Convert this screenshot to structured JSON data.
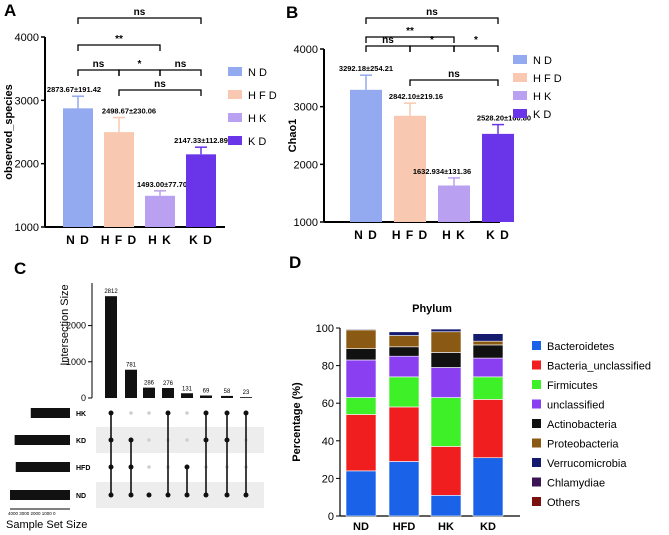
{
  "panels": {
    "A": "A",
    "B": "B",
    "C": "C",
    "D": "D"
  },
  "chart_data": [
    {
      "id": "A",
      "type": "bar",
      "ylabel": "observed_species",
      "categories": [
        "N D",
        "H F D",
        "H K",
        "K D"
      ],
      "values": [
        2873.67,
        2498.67,
        1493.0,
        2147.33
      ],
      "errors": [
        191.42,
        230.06,
        77.7,
        112.89
      ],
      "data_labels": [
        "2873.67±191.42",
        "2498.67±230.06",
        "1493.00±77.70",
        "2147.33±112.89"
      ],
      "colors": [
        "#93a9f0",
        "#f8c9b0",
        "#b9a0f0",
        "#6a35e8"
      ],
      "ylim": [
        1000,
        4000
      ],
      "yticks": [
        "1000",
        "2000",
        "3000",
        "4000"
      ],
      "legend": [
        "N D",
        "H F D",
        "H K",
        "K D"
      ],
      "significance": [
        {
          "from": 0,
          "to": 3,
          "label": "ns"
        },
        {
          "from": 0,
          "to": 2,
          "label": "**"
        },
        {
          "from": 0,
          "to": 1,
          "label": "ns"
        },
        {
          "from": 1,
          "to": 2,
          "label": "*"
        },
        {
          "from": 2,
          "to": 3,
          "label": "ns"
        },
        {
          "from": 1,
          "to": 3,
          "label": "ns"
        }
      ]
    },
    {
      "id": "B",
      "type": "bar",
      "ylabel": "Chao1",
      "categories": [
        "N D",
        "H F D",
        "H K",
        "K D"
      ],
      "values": [
        3292.18,
        2842.1,
        1632.934,
        2528.2
      ],
      "errors": [
        254.21,
        219.16,
        131.36,
        160.8
      ],
      "data_labels": [
        "3292.18±254.21",
        "2842.10±219.16",
        "1632.934±131.36",
        "2528.20±160.80"
      ],
      "colors": [
        "#93a9f0",
        "#f8c9b0",
        "#b9a0f0",
        "#6a35e8"
      ],
      "ylim": [
        1000,
        4000
      ],
      "yticks": [
        "1000",
        "2000",
        "3000",
        "4000"
      ],
      "legend": [
        "N D",
        "H F D",
        "H K",
        "K D"
      ],
      "significance": [
        {
          "from": 0,
          "to": 3,
          "label": "ns"
        },
        {
          "from": 0,
          "to": 2,
          "label": "**"
        },
        {
          "from": 0,
          "to": 1,
          "label": "ns"
        },
        {
          "from": 1,
          "to": 2,
          "label": "*"
        },
        {
          "from": 2,
          "to": 3,
          "label": "*"
        },
        {
          "from": 1,
          "to": 3,
          "label": "ns"
        }
      ]
    },
    {
      "id": "C",
      "type": "upset",
      "ylabel": "Intersection Size",
      "xlabel": "Sample Set Size",
      "yticks": [
        "0",
        "1000",
        "2000"
      ],
      "ylim": [
        0,
        2900
      ],
      "sets": [
        "HK",
        "KD",
        "HFD",
        "ND"
      ],
      "set_sizes": [
        3400,
        4800,
        4700,
        5200
      ],
      "set_axis_label": "4000 3000 2000 1000 0",
      "intersections": [
        {
          "size": 2812,
          "label": "2812",
          "members": [
            "HK",
            "KD",
            "HFD",
            "ND"
          ]
        },
        {
          "size": 781,
          "label": "781",
          "members": [
            "KD",
            "HFD",
            "ND"
          ]
        },
        {
          "size": 286,
          "label": "286",
          "members": [
            "ND"
          ]
        },
        {
          "size": 276,
          "label": "276",
          "members": [
            "HK",
            "ND"
          ]
        },
        {
          "size": 131,
          "label": "131",
          "members": [
            "HFD",
            "ND"
          ]
        },
        {
          "size": 69,
          "label": "69",
          "members": [
            "HK",
            "KD",
            "ND"
          ]
        },
        {
          "size": 58,
          "label": "58",
          "members": [
            "HK",
            "KD",
            "ND"
          ]
        },
        {
          "size": 23,
          "label": "23",
          "members": [
            "HK",
            "ND"
          ]
        }
      ]
    },
    {
      "id": "D",
      "type": "stacked-bar",
      "title": "Phylum",
      "ylabel": "Percentage (%)",
      "categories": [
        "ND",
        "HFD",
        "HK",
        "KD"
      ],
      "ylim": [
        0,
        100
      ],
      "yticks": [
        "0",
        "20",
        "40",
        "60",
        "80",
        "100"
      ],
      "series": [
        {
          "name": "Bacteroidetes",
          "color": "#1a63e8",
          "values": [
            24,
            29,
            11,
            31
          ]
        },
        {
          "name": "Bacteria_unclassified",
          "color": "#f01e1e",
          "values": [
            30,
            29,
            26,
            31
          ]
        },
        {
          "name": "Firmicutes",
          "color": "#3df028",
          "values": [
            9,
            16,
            26,
            12
          ]
        },
        {
          "name": "unclassified",
          "color": "#8a3ff0",
          "values": [
            20,
            11,
            16,
            10
          ]
        },
        {
          "name": "Actinobacteria",
          "color": "#111111",
          "values": [
            6,
            5,
            8,
            7
          ]
        },
        {
          "name": "Proteobacteria",
          "color": "#8a5a14",
          "values": [
            10,
            6,
            11,
            2
          ]
        },
        {
          "name": "Verrucomicrobia",
          "color": "#141a6e",
          "values": [
            0.5,
            2,
            1.5,
            4
          ]
        },
        {
          "name": "Chlamydiae",
          "color": "#3a1454",
          "values": [
            0.3,
            0.3,
            0.3,
            0.2
          ]
        },
        {
          "name": "Others",
          "color": "#7a1010",
          "values": [
            0.2,
            0.2,
            0.2,
            0.3
          ]
        }
      ]
    }
  ]
}
